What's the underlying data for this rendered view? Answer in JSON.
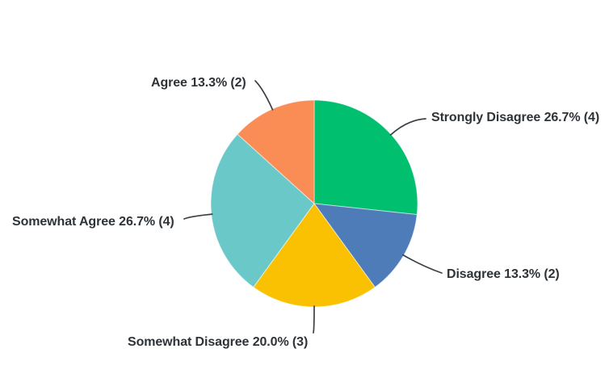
{
  "page": {
    "background_color": "#ffffff"
  },
  "chart_data": {
    "type": "pie",
    "title": "",
    "legend": "none",
    "start_angle_deg": 0,
    "direction": "clockwise",
    "label_text_color": "#2e3338",
    "leader_line_color": "#3b4046",
    "slices": [
      {
        "label": "Strongly Disagree",
        "percent": 26.7,
        "count": 4,
        "display": "Strongly Disagree 26.7% (4)",
        "color": "#00BF6F"
      },
      {
        "label": "Disagree",
        "percent": 13.3,
        "count": 2,
        "display": "Disagree 13.3% (2)",
        "color": "#4E7CB8"
      },
      {
        "label": "Somewhat Disagree",
        "percent": 20.0,
        "count": 3,
        "display": "Somewhat Disagree 20.0% (3)",
        "color": "#FAC002"
      },
      {
        "label": "Somewhat Agree",
        "percent": 26.7,
        "count": 4,
        "display": "Somewhat Agree 26.7% (4)",
        "color": "#6BC8C8"
      },
      {
        "label": "Agree",
        "percent": 13.3,
        "count": 2,
        "display": "Agree 13.3% (2)",
        "color": "#FA8C55"
      }
    ]
  }
}
